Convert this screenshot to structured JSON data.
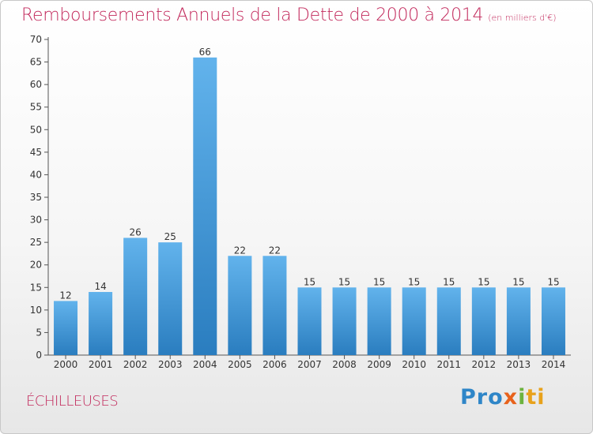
{
  "header": {
    "title": "Remboursements Annuels de la Dette de 2000 à 2014",
    "unit": "(en milliers d'€)"
  },
  "footer": {
    "place": "ÉCHILLEUSES",
    "logo": [
      "Pro",
      "x",
      "i",
      "ti"
    ]
  },
  "colors": {
    "accent": "#c2285b",
    "bar_top": "#62b3ec",
    "bar_bottom": "#2a7dbf"
  },
  "chart_data": {
    "type": "bar",
    "title": "Remboursements Annuels de la Dette de 2000 à 2014",
    "subtitle": "(en milliers d'€)",
    "xlabel": "",
    "ylabel": "",
    "categories": [
      "2000",
      "2001",
      "2002",
      "2003",
      "2004",
      "2005",
      "2006",
      "2007",
      "2008",
      "2009",
      "2010",
      "2011",
      "2012",
      "2013",
      "2014"
    ],
    "values": [
      12,
      14,
      26,
      25,
      66,
      22,
      22,
      15,
      15,
      15,
      15,
      15,
      15,
      15,
      15
    ],
    "ylim": [
      0,
      70
    ],
    "yticks": [
      0,
      5,
      10,
      15,
      20,
      25,
      30,
      35,
      40,
      45,
      50,
      55,
      60,
      65,
      70
    ],
    "grid": false,
    "data_labels": true
  }
}
